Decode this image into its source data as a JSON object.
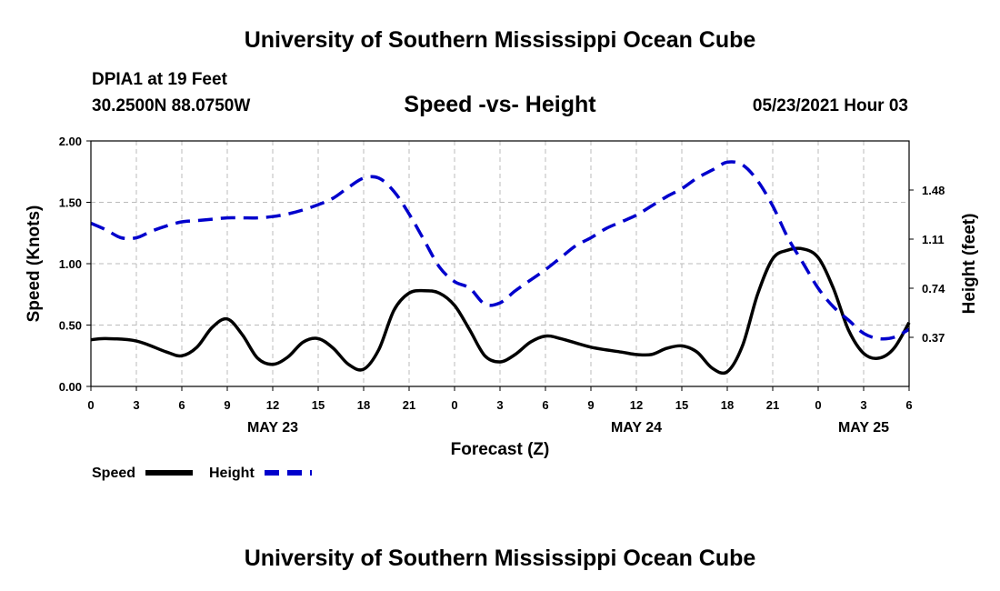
{
  "page": {
    "top_title": "University of Southern Mississippi Ocean Cube",
    "bottom_title": "University of Southern Mississippi Ocean Cube",
    "station": "DPIA1 at 19 Feet",
    "coords": "30.2500N  88.0750W",
    "datetime": "05/23/2021 Hour 03"
  },
  "colors": {
    "speed": "#000000",
    "height": "#0000cc",
    "grid": "#bbbbbb"
  },
  "chart_data": {
    "type": "line",
    "title": "Speed -vs- Height",
    "xlabel": "Forecast (Z)",
    "ylabel": "Speed (Knots)",
    "y2label": "Height (feet)",
    "x_range": [
      0,
      54
    ],
    "ylim": [
      0,
      2
    ],
    "y2lim": [
      0,
      1.85
    ],
    "x_ticks": [
      {
        "x": 0,
        "label": "0"
      },
      {
        "x": 3,
        "label": "3"
      },
      {
        "x": 6,
        "label": "6"
      },
      {
        "x": 9,
        "label": "9"
      },
      {
        "x": 12,
        "label": "12"
      },
      {
        "x": 15,
        "label": "15"
      },
      {
        "x": 18,
        "label": "18"
      },
      {
        "x": 21,
        "label": "21"
      },
      {
        "x": 24,
        "label": "0"
      },
      {
        "x": 27,
        "label": "3"
      },
      {
        "x": 30,
        "label": "6"
      },
      {
        "x": 33,
        "label": "9"
      },
      {
        "x": 36,
        "label": "12"
      },
      {
        "x": 39,
        "label": "15"
      },
      {
        "x": 42,
        "label": "18"
      },
      {
        "x": 45,
        "label": "21"
      },
      {
        "x": 48,
        "label": "0"
      },
      {
        "x": 51,
        "label": "3"
      },
      {
        "x": 54,
        "label": "6"
      }
    ],
    "day_labels": [
      {
        "x": 12,
        "label": "MAY 23"
      },
      {
        "x": 36,
        "label": "MAY 24"
      },
      {
        "x": 51,
        "label": "MAY 25"
      }
    ],
    "y_ticks": [
      {
        "v": 0,
        "label": "0.00"
      },
      {
        "v": 0.5,
        "label": "0.50"
      },
      {
        "v": 1.0,
        "label": "1.00"
      },
      {
        "v": 1.5,
        "label": "1.50"
      },
      {
        "v": 2.0,
        "label": "2.00"
      }
    ],
    "y2_ticks": [
      {
        "v": 0.37,
        "label": "0.37"
      },
      {
        "v": 0.74,
        "label": "0.74"
      },
      {
        "v": 1.11,
        "label": "1.11"
      },
      {
        "v": 1.48,
        "label": "1.48"
      }
    ],
    "series": [
      {
        "name": "Speed",
        "axis": "left",
        "style": "solid",
        "x": [
          0,
          1,
          3,
          5,
          6,
          7,
          8,
          9,
          10,
          11,
          12,
          13,
          14,
          15,
          16,
          17,
          18,
          19,
          20,
          21,
          22,
          23,
          24,
          25,
          26,
          27,
          28,
          29,
          30,
          31,
          33,
          35,
          36,
          37,
          38,
          39,
          40,
          41,
          42,
          43,
          44,
          45,
          46,
          47,
          48,
          49,
          50,
          51,
          52,
          53,
          54
        ],
        "values": [
          0.38,
          0.39,
          0.37,
          0.28,
          0.25,
          0.32,
          0.48,
          0.55,
          0.42,
          0.23,
          0.18,
          0.24,
          0.36,
          0.39,
          0.31,
          0.18,
          0.14,
          0.3,
          0.62,
          0.76,
          0.78,
          0.76,
          0.66,
          0.46,
          0.25,
          0.2,
          0.26,
          0.36,
          0.41,
          0.39,
          0.32,
          0.28,
          0.26,
          0.26,
          0.31,
          0.33,
          0.28,
          0.15,
          0.12,
          0.33,
          0.75,
          1.04,
          1.11,
          1.12,
          1.05,
          0.8,
          0.46,
          0.27,
          0.23,
          0.31,
          0.52
        ]
      },
      {
        "name": "Height",
        "axis": "right",
        "style": "dashed",
        "x": [
          0,
          1,
          2,
          3,
          4,
          5,
          6,
          7,
          8,
          9,
          10,
          11,
          12,
          13,
          14,
          15,
          16,
          17,
          18,
          19,
          20,
          21,
          22,
          23,
          24,
          25,
          26,
          27,
          28,
          29,
          30,
          31,
          32,
          33,
          34,
          35,
          36,
          37,
          38,
          39,
          40,
          41,
          42,
          43,
          44,
          45,
          46,
          47,
          48,
          49,
          50,
          51,
          52,
          53,
          54
        ],
        "values": [
          1.23,
          1.18,
          1.12,
          1.12,
          1.17,
          1.21,
          1.24,
          1.25,
          1.26,
          1.27,
          1.27,
          1.27,
          1.28,
          1.3,
          1.33,
          1.37,
          1.42,
          1.5,
          1.57,
          1.57,
          1.47,
          1.3,
          1.1,
          0.9,
          0.79,
          0.74,
          0.62,
          0.63,
          0.72,
          0.8,
          0.88,
          0.97,
          1.06,
          1.12,
          1.19,
          1.24,
          1.29,
          1.36,
          1.43,
          1.49,
          1.57,
          1.63,
          1.69,
          1.67,
          1.55,
          1.36,
          1.12,
          0.93,
          0.74,
          0.6,
          0.5,
          0.4,
          0.36,
          0.37,
          0.43
        ]
      }
    ],
    "legend": [
      {
        "label": "Speed",
        "style": "solid"
      },
      {
        "label": "Height",
        "style": "dashed"
      }
    ]
  }
}
